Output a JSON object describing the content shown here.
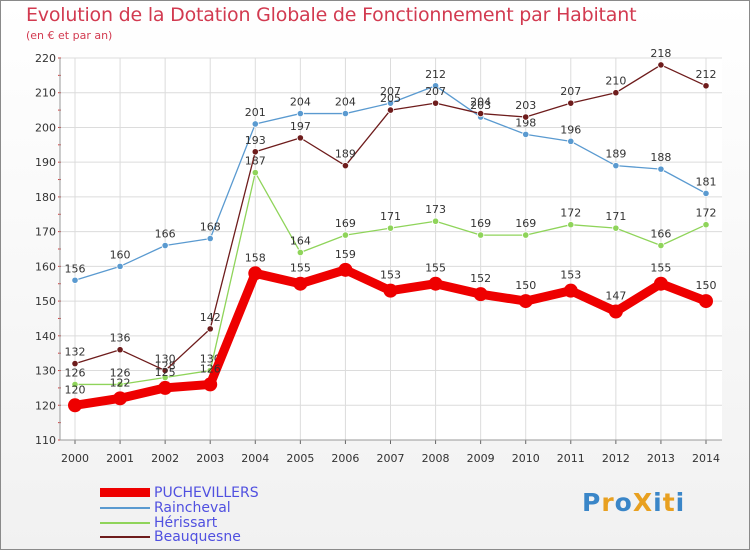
{
  "title": "Evolution de la Dotation Globale de Fonctionnement par Habitant",
  "subtitle": "(en € et par an)",
  "logo": {
    "text": "ProXiti",
    "colors": [
      "#3a86c8",
      "#e8a020",
      "#3a86c8",
      "#e8a020",
      "#3a86c8",
      "#e8a020",
      "#3a86c8"
    ]
  },
  "chart_data": {
    "type": "line",
    "title": "Evolution de la Dotation Globale de Fonctionnement par Habitant",
    "subtitle": "(en € et par an)",
    "x": [
      "2000",
      "2001",
      "2002",
      "2003",
      "2004",
      "2005",
      "2006",
      "2007",
      "2008",
      "2009",
      "2010",
      "2011",
      "2012",
      "2013",
      "2014"
    ],
    "ylim": [
      110,
      220
    ],
    "yticks": [
      110,
      120,
      130,
      140,
      150,
      160,
      170,
      180,
      190,
      200,
      210,
      220
    ],
    "grid": true,
    "legend_position": "bottom-left",
    "series": [
      {
        "name": "PUCHEVILLERS",
        "color": "#ee0000",
        "emphasis": true,
        "values": [
          120,
          122,
          125,
          126,
          158,
          155,
          159,
          153,
          155,
          152,
          150,
          153,
          147,
          155,
          150
        ]
      },
      {
        "name": "Raincheval",
        "color": "#5a9ad0",
        "emphasis": false,
        "values": [
          156,
          160,
          166,
          168,
          201,
          204,
          204,
          207,
          212,
          203,
          198,
          196,
          189,
          188,
          181
        ]
      },
      {
        "name": "Hérissart",
        "color": "#8fd45a",
        "emphasis": false,
        "values": [
          126,
          126,
          128,
          130,
          187,
          164,
          169,
          171,
          173,
          169,
          169,
          172,
          171,
          166,
          172
        ]
      },
      {
        "name": "Beauquesne",
        "color": "#6e1c1c",
        "emphasis": false,
        "values": [
          132,
          136,
          130,
          142,
          193,
          197,
          189,
          205,
          207,
          204,
          203,
          207,
          210,
          218,
          212
        ]
      }
    ]
  }
}
